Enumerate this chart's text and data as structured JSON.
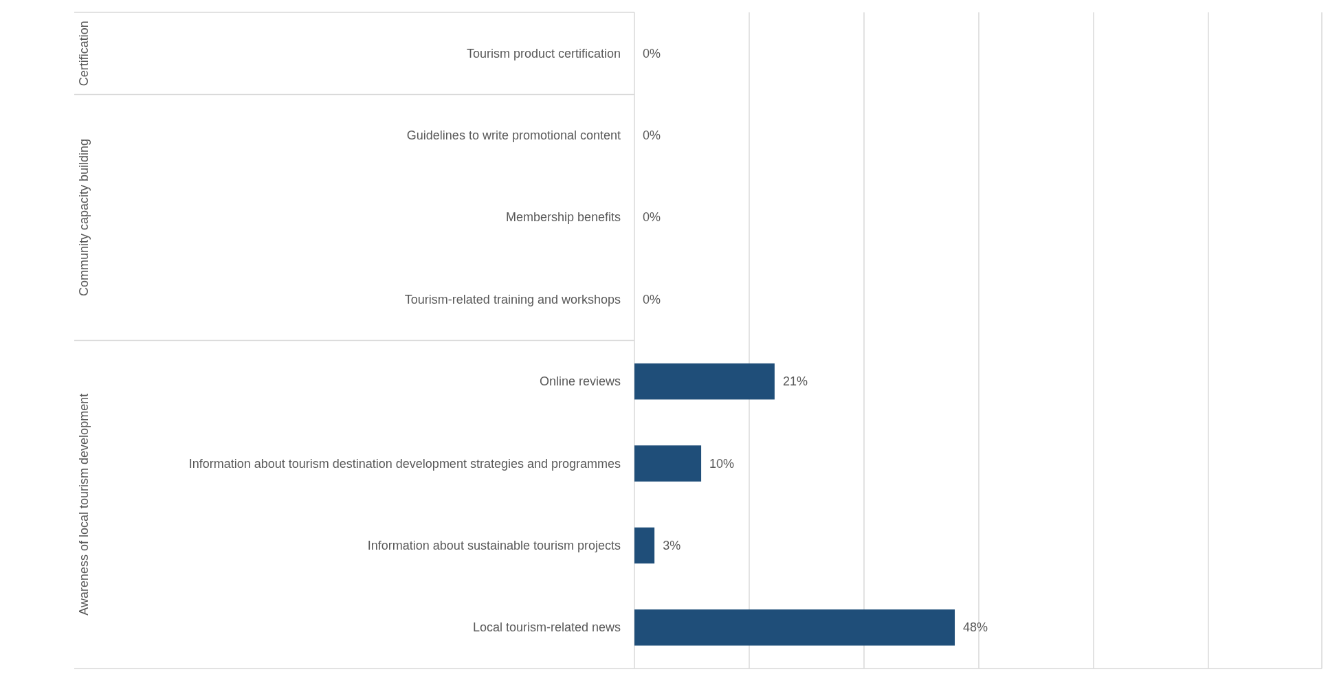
{
  "chart_data": {
    "type": "bar",
    "orientation": "horizontal",
    "categories": [
      "Tourism product certification",
      "Guidelines to write promotional content",
      "Membership benefits",
      "Tourism-related training and workshops",
      "Online reviews",
      "Information about tourism destination development strategies and programmes",
      "Information about sustainable tourism projects",
      "Local tourism-related news"
    ],
    "values": [
      0,
      0,
      0,
      0,
      21,
      10,
      3,
      48
    ],
    "value_labels": [
      "0%",
      "0%",
      "0%",
      "0%",
      "21%",
      "10%",
      "3%",
      "48%"
    ],
    "color": "#1f4e79",
    "xlim": [
      0,
      103
    ],
    "xticks": [
      {
        "value": 17.2,
        "label": null
      },
      {
        "value": 34.4,
        "label": null
      },
      {
        "value": 51.6,
        "label": null
      },
      {
        "value": 68.8,
        "label": null
      },
      {
        "value": 86,
        "label": null
      },
      {
        "value": 103,
        "label": null
      }
    ],
    "tick_labels": "y",
    "grid": "x",
    "annotations": [
      "Certification",
      "Community capacity building",
      "Awareness of local tourism development"
    ]
  }
}
